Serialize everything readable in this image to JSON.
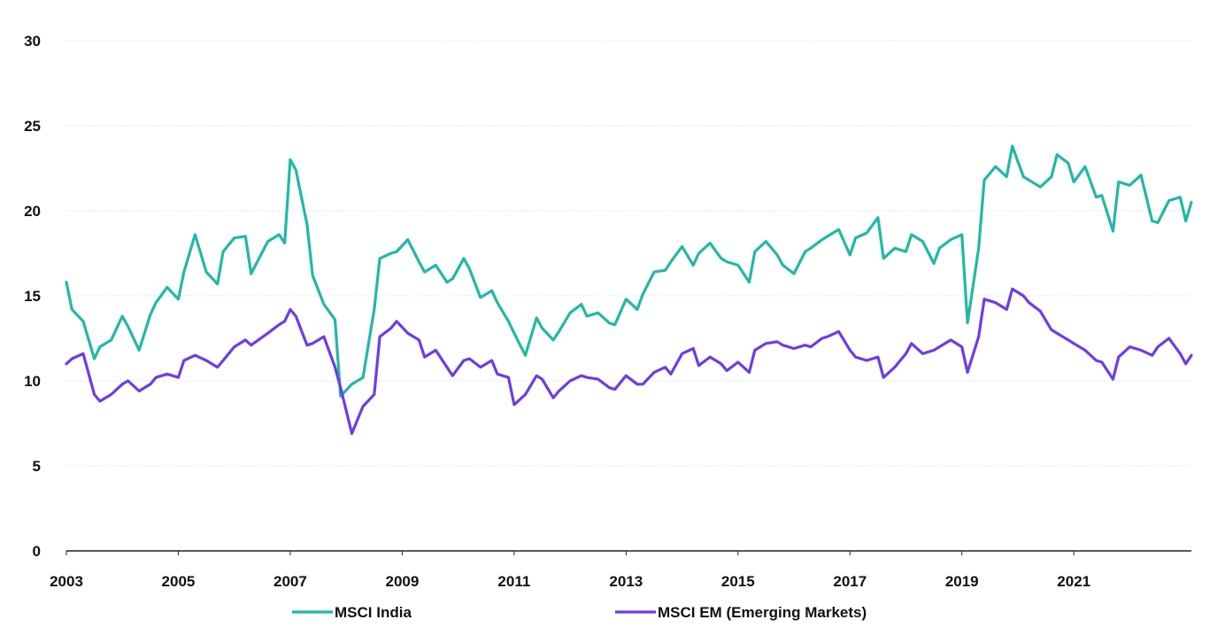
{
  "chart_data": {
    "type": "line",
    "title": "",
    "xlabel": "",
    "ylabel": "",
    "xlim": [
      2003,
      2023.1
    ],
    "ylim": [
      0,
      30
    ],
    "grid": true,
    "legend_position": "bottom",
    "y_ticks": [
      0,
      5,
      10,
      15,
      20,
      25,
      30
    ],
    "y_tick_labels": [
      "0",
      "5",
      "10",
      "15",
      "20",
      "25",
      "30"
    ],
    "x_ticks": [
      2003,
      2005,
      2007,
      2009,
      2011,
      2013,
      2015,
      2017,
      2019,
      2021
    ],
    "x_tick_labels": [
      "2003",
      "2005",
      "2007",
      "2009",
      "2011",
      "2013",
      "2015",
      "2017",
      "2019",
      "2021"
    ],
    "colors": {
      "grid": "#e6e6e6",
      "axis": "#222222"
    },
    "series": [
      {
        "name": "MSCI India",
        "color": "#22b8a6",
        "x": [
          2003.0,
          2003.1,
          2003.3,
          2003.5,
          2003.6,
          2003.8,
          2004.0,
          2004.1,
          2004.3,
          2004.5,
          2004.6,
          2004.8,
          2005.0,
          2005.1,
          2005.3,
          2005.5,
          2005.7,
          2005.8,
          2006.0,
          2006.2,
          2006.3,
          2006.6,
          2006.8,
          2006.9,
          2007.0,
          2007.1,
          2007.3,
          2007.4,
          2007.6,
          2007.8,
          2007.9,
          2008.1,
          2008.3,
          2008.5,
          2008.6,
          2008.8,
          2008.9,
          2009.1,
          2009.3,
          2009.4,
          2009.6,
          2009.8,
          2009.9,
          2010.1,
          2010.2,
          2010.4,
          2010.6,
          2010.7,
          2010.9,
          2011.0,
          2011.2,
          2011.4,
          2011.5,
          2011.7,
          2011.8,
          2012.0,
          2012.2,
          2012.3,
          2012.5,
          2012.7,
          2012.8,
          2013.0,
          2013.2,
          2013.3,
          2013.5,
          2013.7,
          2013.8,
          2014.0,
          2014.2,
          2014.3,
          2014.5,
          2014.7,
          2014.8,
          2015.0,
          2015.2,
          2015.3,
          2015.5,
          2015.7,
          2015.8,
          2016.0,
          2016.2,
          2016.3,
          2016.5,
          2016.6,
          2016.8,
          2017.0,
          2017.1,
          2017.3,
          2017.5,
          2017.6,
          2017.8,
          2018.0,
          2018.1,
          2018.3,
          2018.5,
          2018.6,
          2018.8,
          2019.0,
          2019.1,
          2019.3,
          2019.4,
          2019.6,
          2019.8,
          2019.9,
          2020.1,
          2020.2,
          2020.4,
          2020.6,
          2020.7,
          2020.9,
          2021.0,
          2021.2,
          2021.4,
          2021.5,
          2021.7,
          2021.8,
          2022.0,
          2022.2,
          2022.4,
          2022.5,
          2022.7,
          2022.9,
          2023.0,
          2023.1
        ],
        "y": [
          15.8,
          14.2,
          13.5,
          11.3,
          12.0,
          12.4,
          13.8,
          13.2,
          11.8,
          13.9,
          14.6,
          15.5,
          14.8,
          16.4,
          18.6,
          16.4,
          15.7,
          17.6,
          18.4,
          18.5,
          16.3,
          18.2,
          18.6,
          18.1,
          23.0,
          22.4,
          19.2,
          16.2,
          14.5,
          13.6,
          9.1,
          9.8,
          10.2,
          14.2,
          17.2,
          17.5,
          17.6,
          18.3,
          17.0,
          16.4,
          16.8,
          15.8,
          16.0,
          17.2,
          16.6,
          14.9,
          15.3,
          14.6,
          13.5,
          12.8,
          11.5,
          13.7,
          13.1,
          12.4,
          12.9,
          14.0,
          14.5,
          13.8,
          14.0,
          13.4,
          13.3,
          14.8,
          14.2,
          15.1,
          16.4,
          16.5,
          17.0,
          17.9,
          16.8,
          17.5,
          18.1,
          17.2,
          17.0,
          16.8,
          15.8,
          17.6,
          18.2,
          17.4,
          16.8,
          16.3,
          17.6,
          17.8,
          18.3,
          18.5,
          18.9,
          17.4,
          18.4,
          18.7,
          19.6,
          17.2,
          17.8,
          17.6,
          18.6,
          18.2,
          16.9,
          17.8,
          18.3,
          18.6,
          13.4,
          17.8,
          21.8,
          22.6,
          22.0,
          23.8,
          22.0,
          21.8,
          21.4,
          22.0,
          23.3,
          22.8,
          21.7,
          22.6,
          20.8,
          20.9,
          18.8,
          21.7,
          21.5,
          22.1,
          19.4,
          19.3,
          20.6,
          20.8,
          19.4,
          20.5
        ]
      },
      {
        "name": "MSCI EM (Emerging Markets)",
        "color": "#6e3ce6",
        "x": [
          2003.0,
          2003.1,
          2003.3,
          2003.5,
          2003.6,
          2003.8,
          2004.0,
          2004.1,
          2004.3,
          2004.5,
          2004.6,
          2004.8,
          2005.0,
          2005.1,
          2005.3,
          2005.5,
          2005.7,
          2005.8,
          2006.0,
          2006.2,
          2006.3,
          2006.6,
          2006.8,
          2006.9,
          2007.0,
          2007.1,
          2007.3,
          2007.4,
          2007.6,
          2007.8,
          2007.9,
          2008.1,
          2008.3,
          2008.5,
          2008.6,
          2008.8,
          2008.9,
          2009.1,
          2009.3,
          2009.4,
          2009.6,
          2009.8,
          2009.9,
          2010.1,
          2010.2,
          2010.4,
          2010.6,
          2010.7,
          2010.9,
          2011.0,
          2011.2,
          2011.4,
          2011.5,
          2011.7,
          2011.8,
          2012.0,
          2012.2,
          2012.3,
          2012.5,
          2012.7,
          2012.8,
          2013.0,
          2013.2,
          2013.3,
          2013.5,
          2013.7,
          2013.8,
          2014.0,
          2014.2,
          2014.3,
          2014.5,
          2014.7,
          2014.8,
          2015.0,
          2015.2,
          2015.3,
          2015.5,
          2015.7,
          2015.8,
          2016.0,
          2016.2,
          2016.3,
          2016.5,
          2016.6,
          2016.8,
          2017.0,
          2017.1,
          2017.3,
          2017.5,
          2017.6,
          2017.8,
          2018.0,
          2018.1,
          2018.3,
          2018.5,
          2018.6,
          2018.8,
          2019.0,
          2019.1,
          2019.3,
          2019.4,
          2019.6,
          2019.8,
          2019.9,
          2020.1,
          2020.2,
          2020.4,
          2020.6,
          2020.7,
          2020.9,
          2021.0,
          2021.2,
          2021.4,
          2021.5,
          2021.7,
          2021.8,
          2022.0,
          2022.2,
          2022.4,
          2022.5,
          2022.7,
          2022.9,
          2023.0,
          2023.1
        ],
        "y": [
          11.0,
          11.3,
          11.6,
          9.2,
          8.8,
          9.2,
          9.8,
          10.0,
          9.4,
          9.8,
          10.2,
          10.4,
          10.2,
          11.2,
          11.5,
          11.2,
          10.8,
          11.2,
          12.0,
          12.4,
          12.1,
          12.8,
          13.3,
          13.5,
          14.2,
          13.8,
          12.1,
          12.2,
          12.6,
          10.8,
          9.6,
          6.9,
          8.5,
          9.2,
          12.6,
          13.1,
          13.5,
          12.8,
          12.4,
          11.4,
          11.8,
          10.8,
          10.3,
          11.2,
          11.3,
          10.8,
          11.2,
          10.4,
          10.2,
          8.6,
          9.2,
          10.3,
          10.1,
          9.0,
          9.4,
          10.0,
          10.3,
          10.2,
          10.1,
          9.6,
          9.5,
          10.3,
          9.8,
          9.8,
          10.5,
          10.8,
          10.4,
          11.6,
          11.9,
          10.9,
          11.4,
          11.0,
          10.6,
          11.1,
          10.5,
          11.8,
          12.2,
          12.3,
          12.1,
          11.9,
          12.1,
          12.0,
          12.5,
          12.6,
          12.9,
          11.8,
          11.4,
          11.2,
          11.4,
          10.2,
          10.8,
          11.6,
          12.2,
          11.6,
          11.8,
          12.0,
          12.4,
          12.0,
          10.5,
          12.6,
          14.8,
          14.6,
          14.2,
          15.4,
          15.0,
          14.6,
          14.1,
          13.0,
          12.8,
          12.4,
          12.2,
          11.8,
          11.2,
          11.1,
          10.1,
          11.4,
          12.0,
          11.8,
          11.5,
          12.0,
          12.5,
          11.6,
          11.0,
          11.5
        ]
      }
    ]
  }
}
